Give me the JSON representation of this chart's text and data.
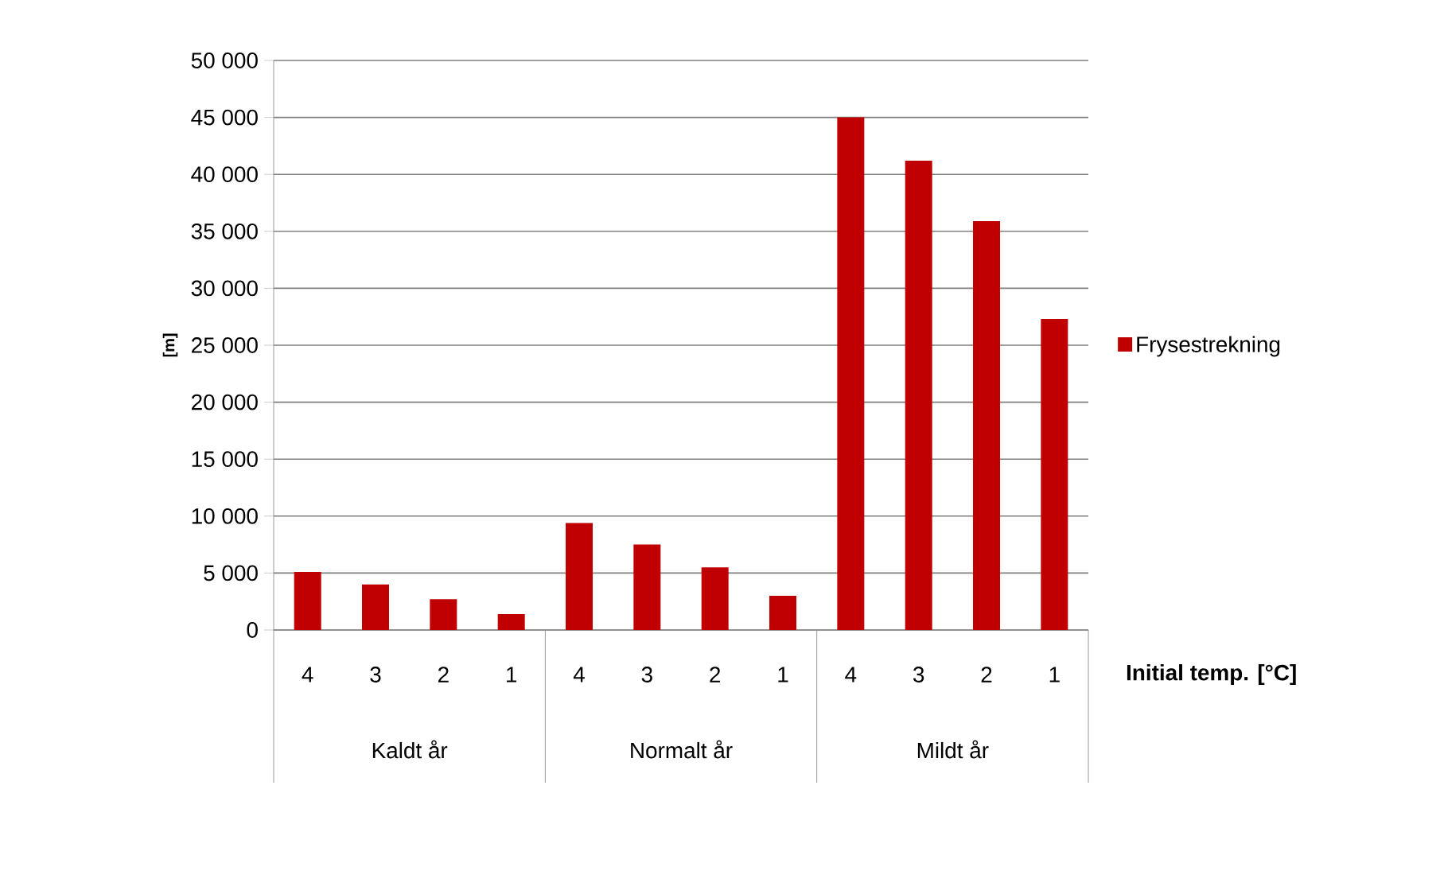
{
  "chart_data": {
    "type": "bar",
    "categories": [
      "4",
      "3",
      "2",
      "1",
      "4",
      "3",
      "2",
      "1",
      "4",
      "3",
      "2",
      "1"
    ],
    "series": [
      {
        "name": "Frysestrekning",
        "color": "#c00000",
        "values": [
          5100,
          4000,
          2700,
          1400,
          9400,
          7500,
          5500,
          3000,
          45000,
          41200,
          35900,
          27300
        ]
      }
    ],
    "ylabel": "[m]",
    "xlabel": "Initial temp. [°C]",
    "annotations": [
      "Kaldt år",
      "Normalt år",
      "Mildt år"
    ],
    "ylim": [
      0,
      50000
    ],
    "yticks": [
      0,
      {
        "value": 5000,
        "label": "5 000"
      },
      {
        "value": 10000,
        "label": "10 000"
      },
      {
        "value": 15000,
        "label": "15 000"
      },
      {
        "value": 20000,
        "label": "20 000"
      },
      {
        "value": 25000,
        "label": "25 000"
      },
      {
        "value": 30000,
        "label": "30 000"
      },
      {
        "value": 35000,
        "label": "35 000"
      },
      {
        "value": 40000,
        "label": "40 000"
      },
      {
        "value": 45000,
        "label": "45 000"
      },
      {
        "value": 50000,
        "label": "50 000"
      }
    ],
    "grid": "y",
    "legend": "right"
  }
}
